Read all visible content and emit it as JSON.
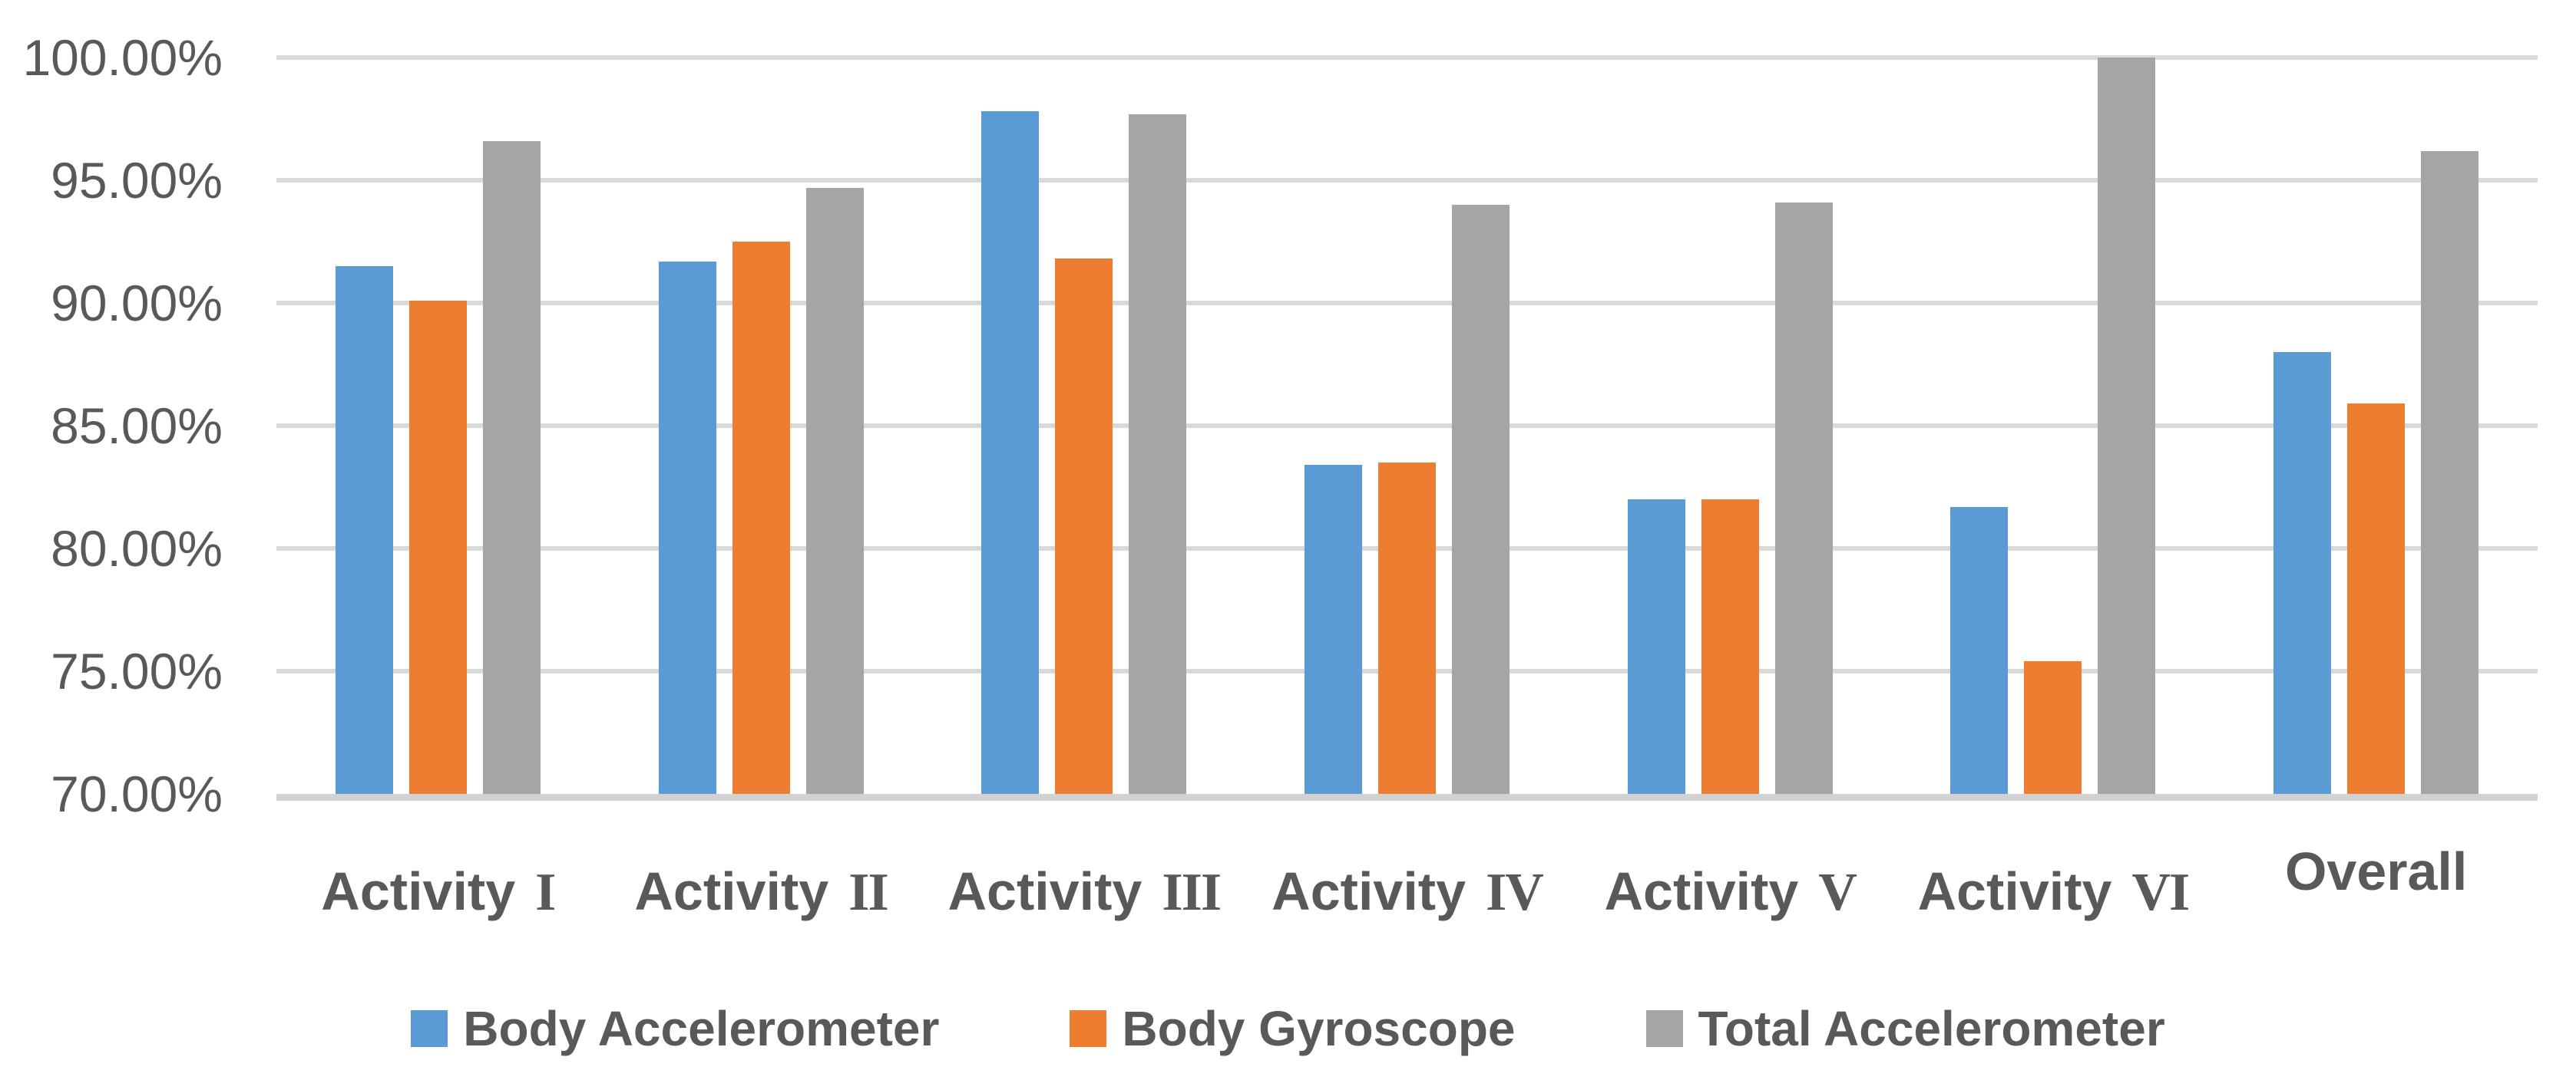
{
  "chart_data": {
    "type": "bar",
    "title": "",
    "xlabel": "",
    "ylabel": "",
    "categories": [
      {
        "text": "Activity",
        "numeral": "I",
        "label": "Activity I"
      },
      {
        "text": "Activity",
        "numeral": "II",
        "label": "Activity II"
      },
      {
        "text": "Activity",
        "numeral": "III",
        "label": "Activity III"
      },
      {
        "text": "Activity",
        "numeral": "IV",
        "label": "Activity IV"
      },
      {
        "text": "Activity",
        "numeral": "V",
        "label": "Activity V"
      },
      {
        "text": "Activity",
        "numeral": "VI",
        "label": "Activity VI"
      },
      {
        "text": "Overall",
        "numeral": "",
        "label": "Overall"
      }
    ],
    "series": [
      {
        "name": "Body Accelerometer",
        "color": "#5B9BD5",
        "values": [
          91.5,
          91.7,
          97.8,
          83.4,
          82.0,
          81.7,
          88.0
        ]
      },
      {
        "name": "Body Gyroscope",
        "color": "#ED7D31",
        "values": [
          90.1,
          92.5,
          91.8,
          83.5,
          82.0,
          75.4,
          85.9
        ]
      },
      {
        "name": "Total Accelerometer",
        "color": "#A5A5A5",
        "values": [
          96.6,
          94.7,
          97.7,
          94.0,
          94.1,
          100.0,
          96.2
        ]
      }
    ],
    "ylim": [
      70,
      100
    ],
    "y_tick_step": 5,
    "y_ticks": [
      "100.00%",
      "95.00%",
      "90.00%",
      "85.00%",
      "80.00%",
      "75.00%",
      "70.00%"
    ],
    "grid": true,
    "legend_position": "bottom"
  },
  "style": {
    "grid_color": "#D9D9D9",
    "axis_line_color": "#D2D2D2",
    "text_color": "#595959",
    "background": "#FFFFFF"
  }
}
